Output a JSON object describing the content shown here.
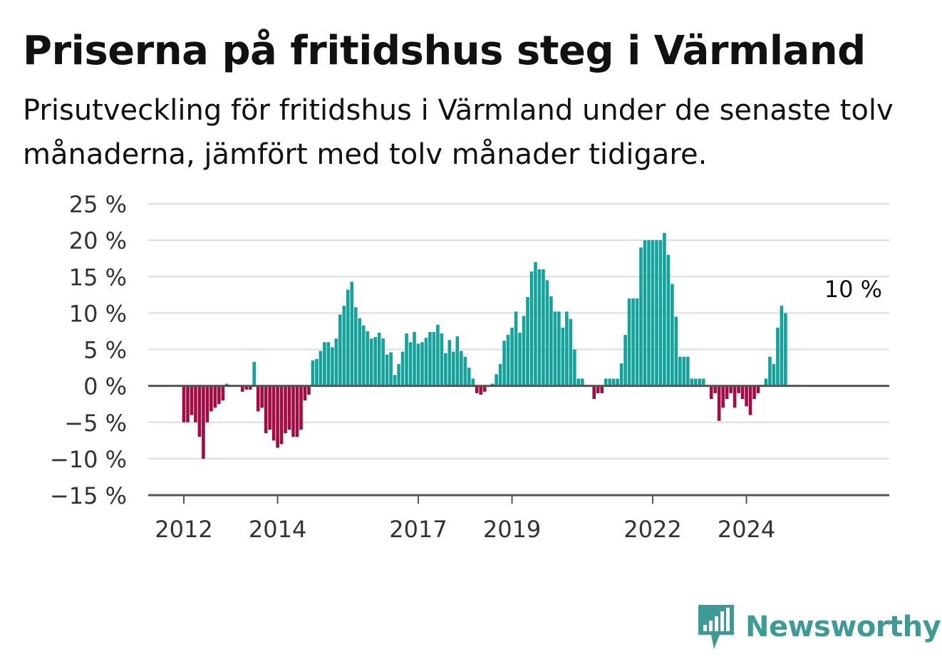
{
  "title": "Priserna på fritidshus steg i Värmland",
  "subtitle": "Prisutveckling för fritidshus i Värmland under de senaste tolv månaderna, jämfört med tolv månader tidigare.",
  "brand": {
    "name": "Newsworthy",
    "icon": "newsworthy-logo-icon"
  },
  "colors": {
    "positive": "#13a39a",
    "negative": "#a50a43",
    "grid": "#dcdcdc",
    "axis": "#555555",
    "brand": "#3d9b95"
  },
  "chart_data": {
    "type": "bar",
    "x_start": "2011-12",
    "x_unit": "month",
    "ylim": [
      -15,
      25
    ],
    "y_ticks": [
      25,
      20,
      15,
      10,
      5,
      0,
      -5,
      -10,
      -15
    ],
    "y_tick_labels": [
      "25 %",
      "20 %",
      "15 %",
      "10 %",
      "5 %",
      "0 %",
      "−5 %",
      "−10 %",
      "−15 %"
    ],
    "x_tick_labels": [
      {
        "label": "2012",
        "month": "2012-01"
      },
      {
        "label": "2014",
        "month": "2014-01"
      },
      {
        "label": "2017",
        "month": "2017-01"
      },
      {
        "label": "2019",
        "month": "2019-01"
      },
      {
        "label": "2022",
        "month": "2022-01"
      },
      {
        "label": "2024",
        "month": "2024-01"
      }
    ],
    "grid": true,
    "last_value_label": "10 %",
    "values": [
      null,
      -5,
      -5,
      -4,
      -5,
      -7,
      -10,
      -5,
      -3.5,
      -3,
      -2.5,
      -2,
      0.3,
      null,
      null,
      null,
      -0.8,
      -0.5,
      -0.5,
      3.3,
      -3.5,
      -3,
      -6.5,
      -6,
      -7.5,
      -8.5,
      -8,
      -6.5,
      -6,
      -7,
      -7,
      -6,
      -2,
      -1.2,
      3.5,
      3.7,
      4.8,
      6,
      6,
      5.3,
      6.5,
      9.8,
      11,
      13.2,
      14.3,
      10.8,
      9.3,
      8.3,
      7.5,
      6.5,
      6.7,
      7.3,
      6.5,
      4.3,
      4.6,
      1.5,
      3,
      4.7,
      7.2,
      6,
      7.4,
      5.8,
      6,
      6.6,
      7.4,
      7.4,
      8.4,
      7.2,
      4.5,
      6.3,
      4.7,
      6.8,
      4.8,
      4,
      2.5,
      1,
      -1,
      -1.2,
      -0.8,
      null,
      0.3,
      1.6,
      3,
      6.2,
      7,
      8,
      10.2,
      7.3,
      9.6,
      12.2,
      15.7,
      17,
      16,
      16,
      14.5,
      12.3,
      10.2,
      10.2,
      8,
      10.2,
      9.2,
      5,
      1,
      1,
      null,
      null,
      -1.8,
      -1,
      -1,
      1,
      1,
      1,
      1,
      3.1,
      7,
      12,
      12,
      12,
      19,
      20,
      20,
      20,
      20,
      20,
      21,
      18,
      14,
      9.5,
      4,
      4,
      4,
      1,
      1,
      1,
      1,
      null,
      -1.8,
      -1,
      -4.8,
      -3,
      -1.8,
      -1,
      -3,
      -1,
      -1.8,
      -2.8,
      -4,
      -1.8,
      -1,
      null,
      1,
      4,
      3,
      8,
      11,
      10
    ]
  }
}
